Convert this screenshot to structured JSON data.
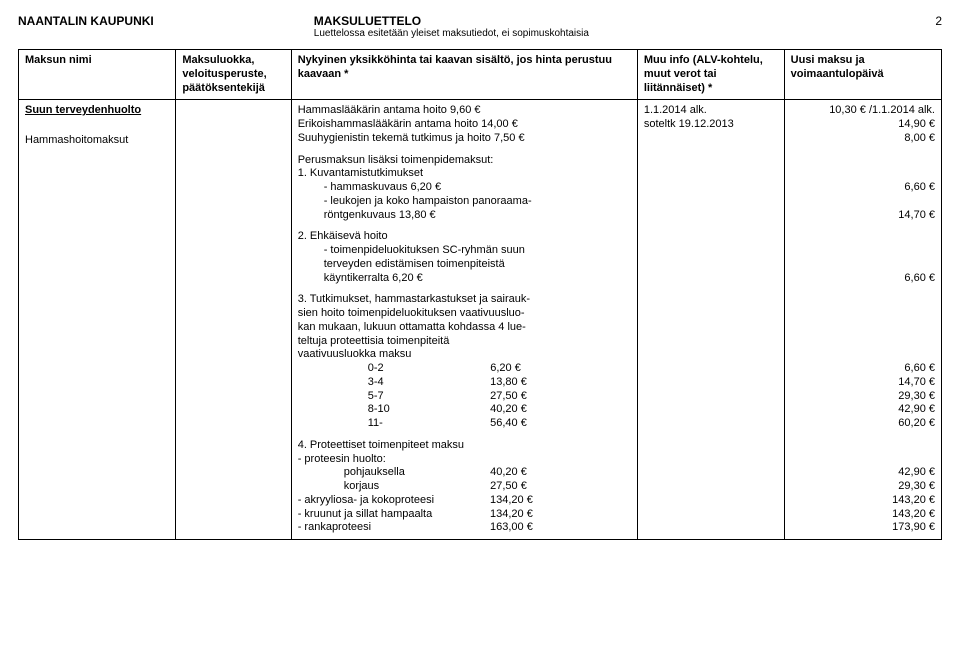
{
  "header": {
    "org": "NAANTALIN KAUPUNKI",
    "title": "MAKSULUETTELO",
    "subtitle": "Luettelossa esitetään yleiset maksutiedot, ei sopimuskohtaisia",
    "page_no": "2"
  },
  "columns": {
    "c1": "Maksun nimi",
    "c2": "Maksuluokka, veloitusperuste, päätöksentekijä",
    "c3": "Nykyinen yksikköhinta tai kaavan sisältö, jos hinta perustuu kaavaan *",
    "c4": "Muu info (ALV-kohtelu, muut verot tai liitännäiset) *",
    "c5": "Uusi maksu ja voimaantulopäivä"
  },
  "body": {
    "name_main": "Suun terveydenhuolto",
    "name_sub": "Hammashoitomaksut",
    "lines": {
      "l1": "Hammaslääkärin antama hoito 9,60 €",
      "l2": "Erikoishammaslääkärin antama hoito 14,00 €",
      "l3": "Suuhygienistin tekemä tutkimus ja hoito 7,50 €",
      "perus": "Perusmaksun lisäksi toimenpidemaksut:",
      "kuva_h": "1. Kuvantamistutkimukset",
      "kuva_a_l": "-   hammaskuvaus 6,20 €",
      "kuva_b_l1": "-   leukojen ja koko hampaiston panoraama-",
      "kuva_b_l2": "    röntgenkuvaus 13,80 €",
      "ehk_h": "2. Ehkäisevä hoito",
      "ehk_a": "-   toimenpideluokituksen SC-ryhmän suun",
      "ehk_b": "    terveyden edistämisen toimenpiteistä",
      "ehk_c": "    käyntikerralta 6,20 €",
      "tut_h1": "3. Tutkimukset, hammastarkastukset ja sairauk-",
      "tut_h2": "sien hoito toimenpideluokituksen vaativuusluo-",
      "tut_h3": "kan mukaan, lukuun ottamatta kohdassa 4 lue-",
      "tut_h4": "teltuja proteettisia toimenpiteitä",
      "tut_h5": "vaativuusluokka            maksu",
      "tut_r1_l": "0-2",
      "tut_r1_r": "6,20 €",
      "tut_r2_l": "3-4",
      "tut_r2_r": "13,80 €",
      "tut_r3_l": "5-7",
      "tut_r3_r": "27,50 €",
      "tut_r4_l": "8-10",
      "tut_r4_r": "40,20 €",
      "tut_r5_l": "11-",
      "tut_r5_r": "56,40 €",
      "pro_h": "4. Proteettiset toimenpiteet           maksu",
      "pro_a": "- proteesin huolto:",
      "pro_b_l": "pohjauksella",
      "pro_b_r": "40,20 €",
      "pro_c_l": "korjaus",
      "pro_c_r": "27,50 €",
      "pro_d_l": "- akryyliosa- ja kokoproteesi",
      "pro_d_r": "134,20 €",
      "pro_e_l": "- kruunut ja sillat hampaalta",
      "pro_e_r": "134,20 €",
      "pro_f_l": "- rankaproteesi",
      "pro_f_r": "163,00 €"
    },
    "info": {
      "alk": "1.1.2014 alk.",
      "sote": "soteltk 19.12.2013"
    },
    "new": {
      "n1": "10,30 € /1.1.2014 alk.",
      "n2": "14,90 €",
      "n3": "8,00 €",
      "nk1": "6,60 €",
      "nk2": "14,70 €",
      "ne1": "6,60 €",
      "nt1": "6,60 €",
      "nt2": "14,70 €",
      "nt3": "29,30 €",
      "nt4": "42,90 €",
      "nt5": "60,20 €",
      "np1": "42,90 €",
      "np2": "29,30 €",
      "np3": "143,20 €",
      "np4": "143,20 €",
      "np5": "173,90 €"
    }
  }
}
